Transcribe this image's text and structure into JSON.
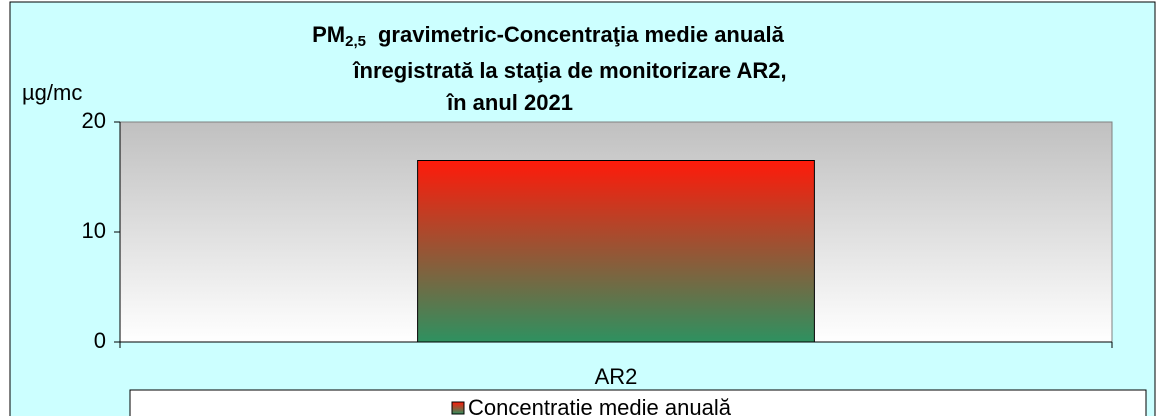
{
  "chart_data": {
    "type": "bar",
    "title": [
      "PM",
      "2,5",
      "gravimetric-Concentraţia medie anuală",
      "înregistrată la staţia de monitorizare AR2,",
      "în anul 2021"
    ],
    "y_label": "µg/mc",
    "categories": [
      "AR2"
    ],
    "series": [
      {
        "name": "Concentratie medie anuală",
        "color": [
          "#ff1a0a",
          "#2e9160"
        ],
        "values": [
          16.5
        ]
      }
    ],
    "ylim": [
      0,
      20
    ],
    "yticks": [
      0,
      10,
      20
    ],
    "legend": "bottom"
  }
}
